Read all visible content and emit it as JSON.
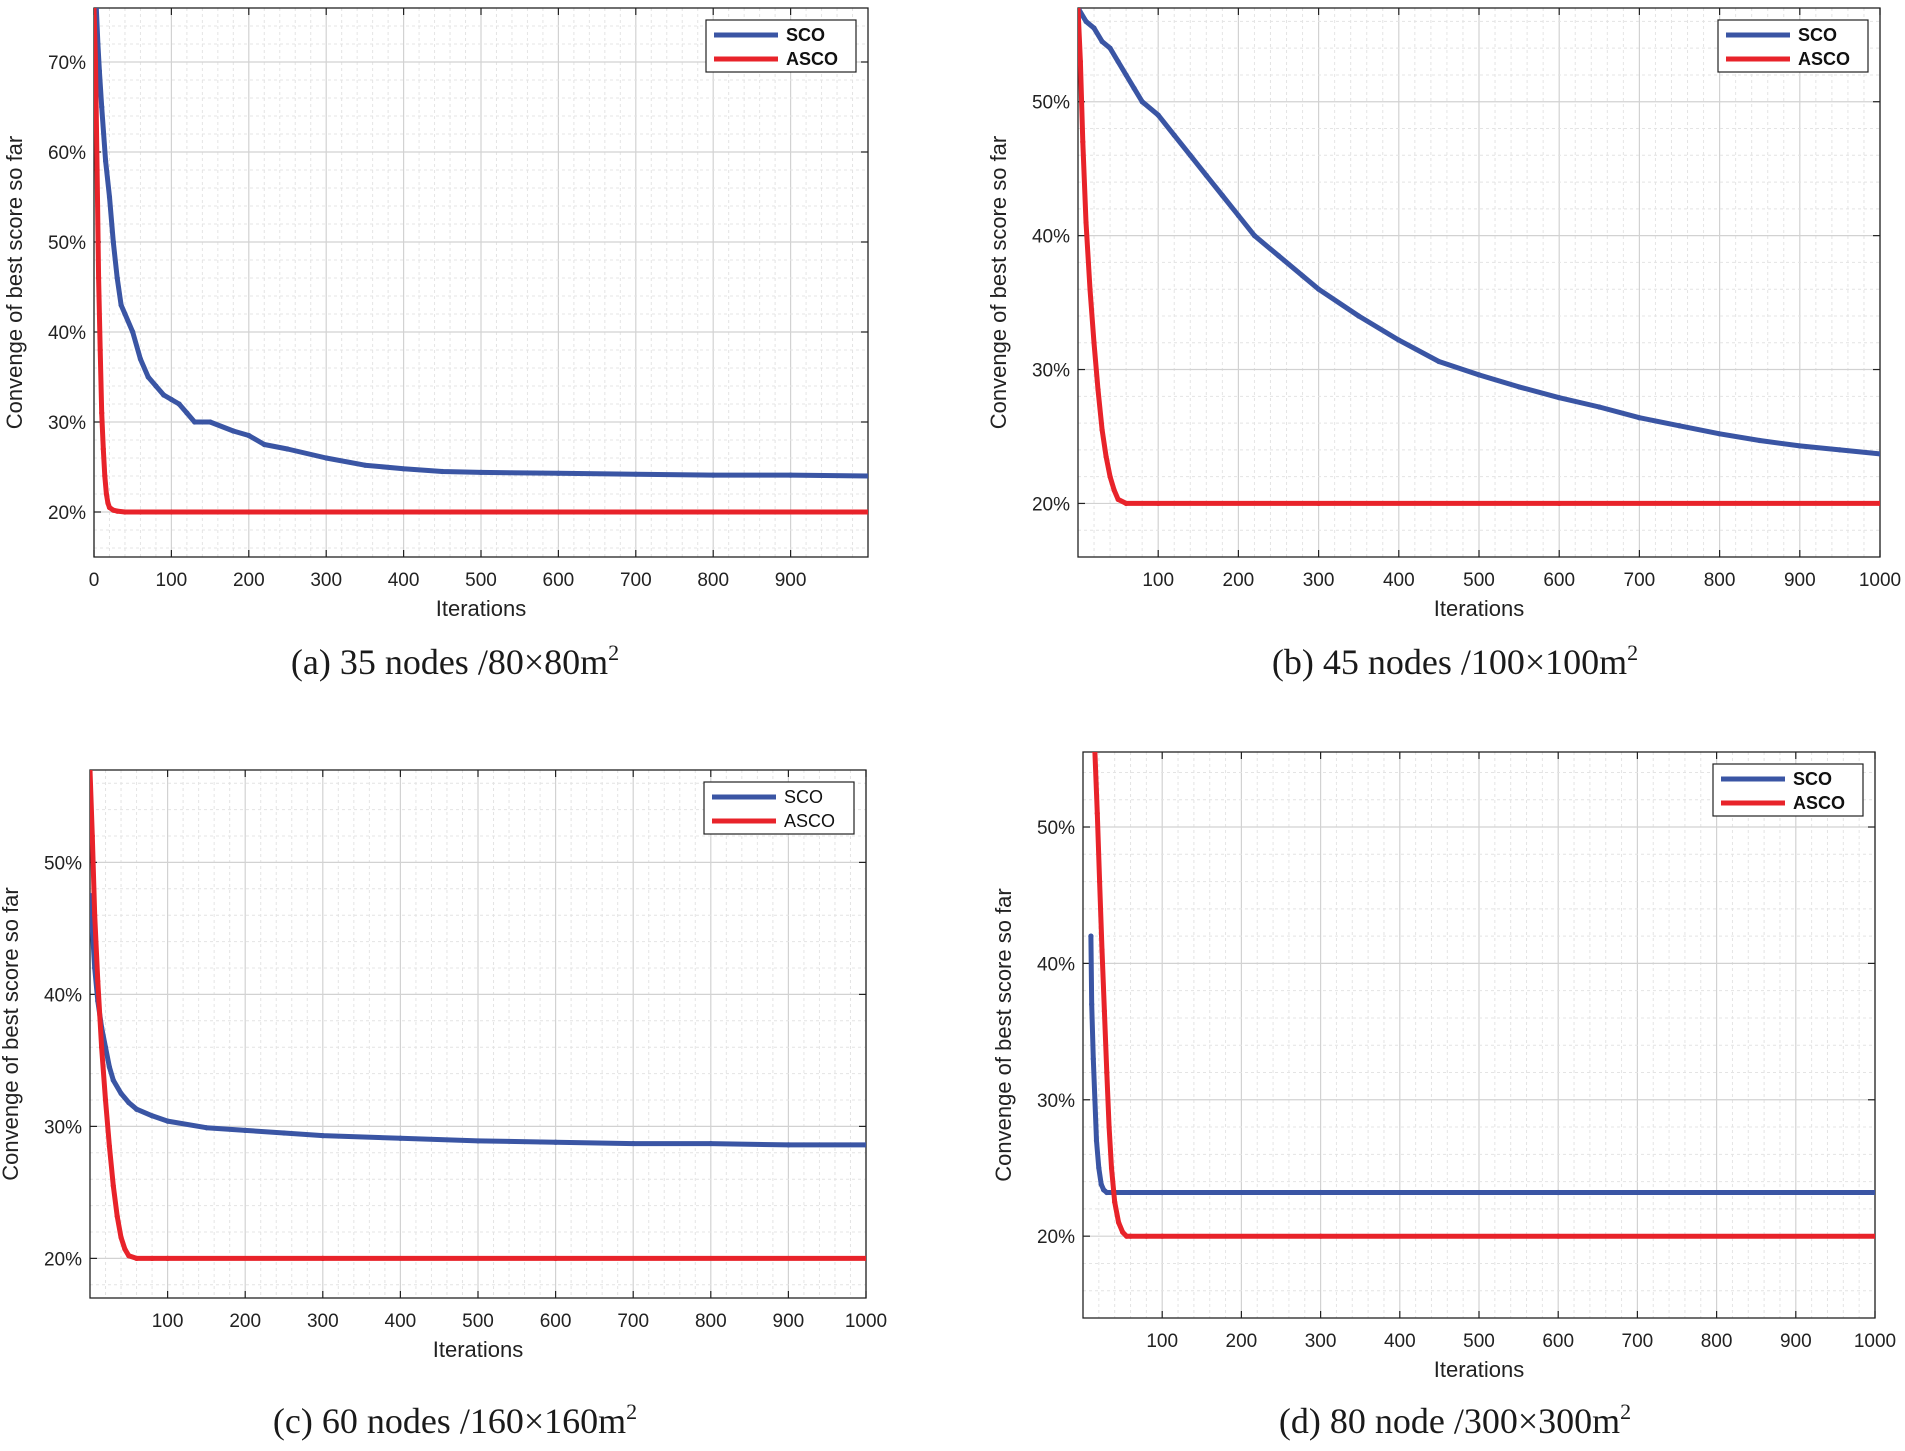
{
  "chart_data": [
    {
      "type": "line",
      "caption": {
        "prefix": "(a) 35 nodes /80×80m",
        "sup": "2"
      },
      "xlabel": "Iterations",
      "ylabel": "Convenge of best score so far",
      "xlim": [
        0,
        1000
      ],
      "ylim": [
        0.15,
        0.76
      ],
      "xticks": [
        0,
        100,
        200,
        300,
        400,
        500,
        600,
        700,
        800,
        900
      ],
      "xtick_labels": [
        "0",
        "100",
        "200",
        "300",
        "400",
        "500",
        "600",
        "700",
        "800",
        "900"
      ],
      "yticks": [
        0.2,
        0.3,
        0.4,
        0.5,
        0.6,
        0.7
      ],
      "ytick_labels": [
        "20%",
        "30%",
        "40%",
        "50%",
        "60%",
        "70%"
      ],
      "grid": true,
      "legend_position": "top-right",
      "legend_bold": true,
      "series": [
        {
          "name": "SCO",
          "color": "#3a55a4",
          "x": [
            0,
            3,
            5,
            7,
            10,
            15,
            20,
            25,
            30,
            35,
            40,
            50,
            60,
            70,
            80,
            90,
            100,
            110,
            120,
            130,
            150,
            180,
            200,
            220,
            250,
            300,
            350,
            400,
            450,
            500,
            600,
            700,
            800,
            900,
            1000
          ],
          "y": [
            0.76,
            0.76,
            0.72,
            0.69,
            0.65,
            0.59,
            0.55,
            0.5,
            0.46,
            0.43,
            0.42,
            0.4,
            0.37,
            0.35,
            0.34,
            0.33,
            0.325,
            0.32,
            0.31,
            0.3,
            0.3,
            0.29,
            0.285,
            0.275,
            0.27,
            0.26,
            0.252,
            0.248,
            0.245,
            0.244,
            0.243,
            0.242,
            0.241,
            0.241,
            0.24
          ]
        },
        {
          "name": "ASCO",
          "color": "#e8232a",
          "x": [
            0,
            2,
            4,
            6,
            8,
            10,
            12,
            14,
            16,
            18,
            20,
            25,
            30,
            40,
            60,
            100,
            200,
            400,
            600,
            800,
            1000
          ],
          "y": [
            0.76,
            0.7,
            0.58,
            0.46,
            0.38,
            0.31,
            0.27,
            0.24,
            0.22,
            0.21,
            0.205,
            0.202,
            0.201,
            0.2,
            0.2,
            0.2,
            0.2,
            0.2,
            0.2,
            0.2,
            0.2
          ]
        }
      ]
    },
    {
      "type": "line",
      "caption": {
        "prefix": "(b) 45 nodes /100×100m",
        "sup": "2"
      },
      "xlabel": "Iterations",
      "ylabel": "Convenge of best score so far",
      "xlim": [
        0,
        1000
      ],
      "ylim": [
        0.16,
        0.57
      ],
      "xticks": [
        100,
        200,
        300,
        400,
        500,
        600,
        700,
        800,
        900,
        1000
      ],
      "xtick_labels": [
        "100",
        "200",
        "300",
        "400",
        "500",
        "600",
        "700",
        "800",
        "900",
        "1000"
      ],
      "yticks": [
        0.2,
        0.3,
        0.4,
        0.5
      ],
      "ytick_labels": [
        "20%",
        "30%",
        "40%",
        "50%"
      ],
      "grid": true,
      "legend_position": "top-right",
      "legend_bold": true,
      "series": [
        {
          "name": "SCO",
          "color": "#3a55a4",
          "x": [
            0,
            10,
            20,
            30,
            40,
            50,
            60,
            70,
            80,
            100,
            120,
            140,
            160,
            180,
            200,
            220,
            250,
            280,
            300,
            350,
            400,
            450,
            500,
            550,
            600,
            650,
            700,
            750,
            800,
            850,
            900,
            950,
            1000
          ],
          "y": [
            0.57,
            0.56,
            0.555,
            0.545,
            0.54,
            0.53,
            0.52,
            0.51,
            0.5,
            0.49,
            0.475,
            0.46,
            0.445,
            0.43,
            0.415,
            0.4,
            0.385,
            0.37,
            0.36,
            0.34,
            0.322,
            0.306,
            0.296,
            0.287,
            0.279,
            0.272,
            0.264,
            0.258,
            0.252,
            0.247,
            0.243,
            0.24,
            0.237
          ]
        },
        {
          "name": "ASCO",
          "color": "#e8232a",
          "x": [
            0,
            3,
            6,
            10,
            15,
            20,
            25,
            30,
            35,
            40,
            45,
            50,
            60,
            100,
            300,
            600,
            1000
          ],
          "y": [
            0.57,
            0.53,
            0.47,
            0.41,
            0.36,
            0.32,
            0.285,
            0.255,
            0.235,
            0.22,
            0.21,
            0.203,
            0.2,
            0.2,
            0.2,
            0.2,
            0.2
          ]
        }
      ]
    },
    {
      "type": "line",
      "caption": {
        "prefix": "(c) 60 nodes /160×160m",
        "sup": "2"
      },
      "xlabel": "Iterations",
      "ylabel": "Convenge of best score so far",
      "xlim": [
        0,
        1000
      ],
      "ylim": [
        0.17,
        0.57
      ],
      "xticks": [
        100,
        200,
        300,
        400,
        500,
        600,
        700,
        800,
        900,
        1000
      ],
      "xtick_labels": [
        "100",
        "200",
        "300",
        "400",
        "500",
        "600",
        "700",
        "800",
        "900",
        "1000"
      ],
      "yticks": [
        0.2,
        0.3,
        0.4,
        0.5
      ],
      "ytick_labels": [
        "20%",
        "30%",
        "40%",
        "50%"
      ],
      "grid": true,
      "legend_position": "top-right",
      "legend_bold": false,
      "series": [
        {
          "name": "SCO",
          "color": "#3a55a4",
          "x": [
            0,
            3,
            6,
            10,
            15,
            20,
            25,
            30,
            40,
            50,
            60,
            80,
            100,
            150,
            200,
            250,
            300,
            400,
            500,
            600,
            700,
            800,
            900,
            1000
          ],
          "y": [
            0.475,
            0.45,
            0.42,
            0.395,
            0.375,
            0.36,
            0.345,
            0.335,
            0.325,
            0.318,
            0.313,
            0.308,
            0.304,
            0.299,
            0.297,
            0.295,
            0.293,
            0.291,
            0.289,
            0.288,
            0.287,
            0.287,
            0.286,
            0.286
          ]
        },
        {
          "name": "ASCO",
          "color": "#e8232a",
          "x": [
            0,
            3,
            6,
            10,
            15,
            20,
            25,
            30,
            35,
            40,
            45,
            50,
            60,
            80,
            100,
            300,
            600,
            1000
          ],
          "y": [
            0.57,
            0.52,
            0.46,
            0.41,
            0.36,
            0.32,
            0.285,
            0.255,
            0.232,
            0.216,
            0.207,
            0.202,
            0.2,
            0.2,
            0.2,
            0.2,
            0.2,
            0.2
          ]
        }
      ]
    },
    {
      "type": "line",
      "caption": {
        "prefix": "(d) 80 node /300×300m",
        "sup": "2"
      },
      "xlabel": "Iterations",
      "ylabel": "Convenge of best score so far",
      "xlim": [
        0,
        1000
      ],
      "ylim": [
        0.14,
        0.555
      ],
      "xticks": [
        100,
        200,
        300,
        400,
        500,
        600,
        700,
        800,
        900,
        1000
      ],
      "xtick_labels": [
        "100",
        "200",
        "300",
        "400",
        "500",
        "600",
        "700",
        "800",
        "900",
        "1000"
      ],
      "yticks": [
        0.2,
        0.3,
        0.4,
        0.5
      ],
      "ytick_labels": [
        "20%",
        "30%",
        "40%",
        "50%"
      ],
      "grid": true,
      "legend_position": "top-right",
      "legend_bold": true,
      "series": [
        {
          "name": "SCO",
          "color": "#3a55a4",
          "x": [
            10,
            11,
            13,
            15,
            17,
            20,
            23,
            26,
            30,
            40,
            60,
            100,
            300,
            600,
            1000
          ],
          "y": [
            0.42,
            0.37,
            0.33,
            0.3,
            0.27,
            0.25,
            0.238,
            0.234,
            0.232,
            0.232,
            0.232,
            0.232,
            0.232,
            0.232,
            0.232
          ]
        },
        {
          "name": "ASCO",
          "color": "#e8232a",
          "x": [
            15,
            18,
            21,
            24,
            27,
            30,
            33,
            36,
            40,
            45,
            50,
            55,
            60,
            80,
            100,
            300,
            600,
            1000
          ],
          "y": [
            0.555,
            0.51,
            0.46,
            0.41,
            0.365,
            0.32,
            0.28,
            0.25,
            0.225,
            0.21,
            0.203,
            0.2,
            0.2,
            0.2,
            0.2,
            0.2,
            0.2,
            0.2
          ]
        }
      ]
    }
  ]
}
